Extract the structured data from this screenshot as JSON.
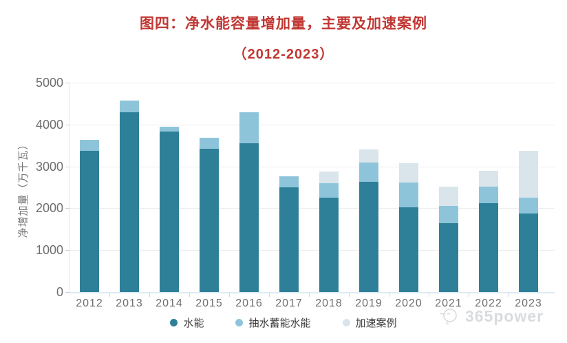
{
  "title": {
    "line1": "图四：净水能容量增加量，主要及加速案例",
    "line2": "（2012-2023）",
    "color": "#c13733"
  },
  "watermark": {
    "text": "365power"
  },
  "chart_data": {
    "type": "bar",
    "stacked": true,
    "title": "图四：净水能容量增加量，主要及加速案例（2012-2023）",
    "categories": [
      "2012",
      "2013",
      "2014",
      "2015",
      "2016",
      "2017",
      "2018",
      "2019",
      "2020",
      "2021",
      "2022",
      "2023"
    ],
    "series": [
      {
        "name": "水能",
        "color": "#2e7f98",
        "values": [
          3370,
          4300,
          3830,
          3420,
          3560,
          2500,
          2250,
          2640,
          2030,
          1650,
          2130,
          1870
        ]
      },
      {
        "name": "抽水蓄能水能",
        "color": "#8ec4da",
        "values": [
          260,
          280,
          120,
          260,
          740,
          270,
          350,
          460,
          590,
          410,
          390,
          380
        ]
      },
      {
        "name": "加速案例",
        "color": "#d9e5eb",
        "values": [
          0,
          0,
          0,
          0,
          0,
          0,
          280,
          310,
          460,
          460,
          370,
          1130
        ]
      }
    ],
    "xlabel": "",
    "ylabel": "净增加量（万千瓦）",
    "ylim": [
      0,
      5000
    ],
    "yticks": [
      0,
      1000,
      2000,
      3000,
      4000,
      5000
    ],
    "grid": true,
    "legend_position": "bottom"
  }
}
